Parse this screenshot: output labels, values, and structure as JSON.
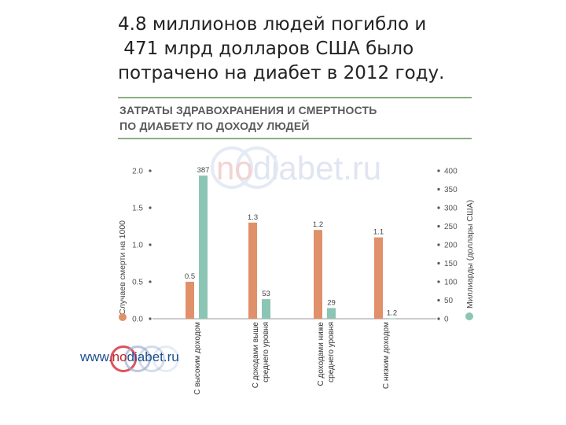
{
  "headline": {
    "line1": "4.8 миллионов людей погибло и",
    "line2": " 471 млрд долларов США было",
    "line3": "потрачено на диабет в 2012 году."
  },
  "subtitle": {
    "line1": "ЗАТРАТЫ ЗДРАВОХРАНЕНИЯ И СМЕРТНОСТЬ",
    "line2": "ПО ДИАБЕТУ ПО ДОХОДУ ЛЮДЕЙ"
  },
  "watermark": {
    "part1": "no",
    "part2": "diabet.ru"
  },
  "site": {
    "prefix": "www.",
    "no": "no",
    "rest": "diabet.ru"
  },
  "colors": {
    "deaths": "#e0916a",
    "spend": "#8cc5b4",
    "rule": "#8cae84"
  },
  "chart_data": {
    "type": "bar",
    "categories": [
      "С высоким доходом",
      "С доходами выше среднего уровня",
      "С доходами ниже среднего уровня",
      "С низким доходом"
    ],
    "category_lines": [
      [
        "С высоким доходом"
      ],
      [
        "С доходами выше",
        "среднего уровня"
      ],
      [
        "С доходами ниже",
        "среднего уровня"
      ],
      [
        "С низким доходом"
      ]
    ],
    "series": [
      {
        "name": "Случаев смерти на 1000",
        "axis": "left",
        "values": [
          0.5,
          1.3,
          1.2,
          1.1
        ],
        "labels": [
          "0.5",
          "1.3",
          "1.2",
          "1.1"
        ]
      },
      {
        "name": "Миллиарды (доллары США)",
        "axis": "right",
        "values": [
          387,
          53,
          29,
          1.2
        ],
        "labels": [
          "387",
          "53",
          "29",
          "1.2"
        ]
      }
    ],
    "ylabel": "Случаев смерти на 1000",
    "ylabel_right": "Миллиарды (доллары США)",
    "ylim": [
      0,
      2.0
    ],
    "ylim_right": [
      0,
      400
    ],
    "yticks": [
      "0.0",
      "0.5",
      "1.0",
      "1.5",
      "2.0"
    ],
    "yticks_right": [
      "0",
      "50",
      "100",
      "150",
      "200",
      "250",
      "300",
      "350",
      "400"
    ],
    "grid": false
  }
}
